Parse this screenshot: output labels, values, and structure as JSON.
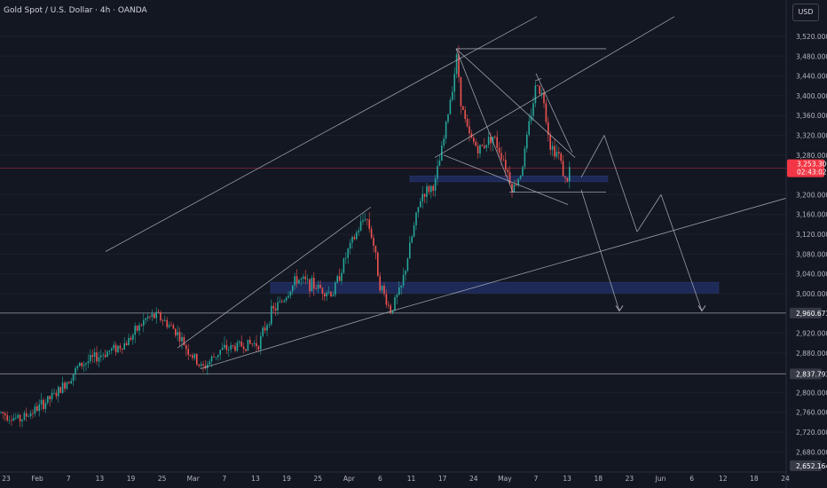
{
  "header": {
    "title": "Gold Spot / U.S. Dollar · 4h · OANDA",
    "currency_button": "USD"
  },
  "colors": {
    "background": "#131722",
    "up_candle": "#26a69a",
    "down_candle": "#ef5350",
    "zone": "#1e2a5a",
    "drawing_line": "#b2b5be",
    "current_price_tag": "#f23645"
  },
  "chart_data": {
    "type": "candlestick",
    "symbol": "Gold Spot / U.S. Dollar",
    "interval": "4h",
    "broker": "OANDA",
    "y_ticks": [
      "3,520.000",
      "3,480.000",
      "3,440.000",
      "3,400.000",
      "3,360.000",
      "3,320.000",
      "3,280.000",
      "3,200.000",
      "3,160.000",
      "3,120.000",
      "3,080.000",
      "3,040.000",
      "3,000.000",
      "2,920.000",
      "2,880.000",
      "2,800.000",
      "2,760.000",
      "2,720.000",
      "2,680.000"
    ],
    "x_ticks": [
      "23",
      "Feb",
      "7",
      "13",
      "19",
      "25",
      "Mar",
      "7",
      "13",
      "19",
      "25",
      "Apr",
      "6",
      "11",
      "17",
      "24",
      "May",
      "7",
      "13",
      "18",
      "23",
      "Jun",
      "6",
      "12",
      "18",
      "24"
    ],
    "price_tags": [
      {
        "label": "3,253.300",
        "sub": "02:43:02",
        "value": 3253.3,
        "style": "current"
      },
      {
        "label": "2,960.673",
        "value": 2960.673,
        "style": "level"
      },
      {
        "label": "2,837.793",
        "value": 2837.793,
        "style": "level"
      },
      {
        "label": "2,652.164",
        "value": 2652.164,
        "style": "level"
      }
    ],
    "ylim": [
      2640,
      3550
    ],
    "path": [
      [
        0,
        2760
      ],
      [
        22,
        2745
      ],
      [
        42,
        2768
      ],
      [
        65,
        2800
      ],
      [
        90,
        2855
      ],
      [
        118,
        2880
      ],
      [
        142,
        2900
      ],
      [
        165,
        2950
      ],
      [
        178,
        2955
      ],
      [
        198,
        2925
      ],
      [
        212,
        2885
      ],
      [
        228,
        2848
      ],
      [
        248,
        2885
      ],
      [
        270,
        2895
      ],
      [
        292,
        2900
      ],
      [
        305,
        2960
      ],
      [
        318,
        2985
      ],
      [
        335,
        3030
      ],
      [
        355,
        3015
      ],
      [
        375,
        3000
      ],
      [
        392,
        3085
      ],
      [
        412,
        3160
      ],
      [
        420,
        3110
      ],
      [
        428,
        3020
      ],
      [
        440,
        2965
      ],
      [
        452,
        3010
      ],
      [
        466,
        3130
      ],
      [
        475,
        3200
      ],
      [
        490,
        3220
      ],
      [
        500,
        3310
      ],
      [
        515,
        3480
      ],
      [
        520,
        3380
      ],
      [
        528,
        3320
      ],
      [
        540,
        3290
      ],
      [
        555,
        3320
      ],
      [
        568,
        3270
      ],
      [
        578,
        3210
      ],
      [
        588,
        3250
      ],
      [
        598,
        3360
      ],
      [
        605,
        3430
      ],
      [
        613,
        3390
      ],
      [
        620,
        3300
      ],
      [
        630,
        3280
      ],
      [
        638,
        3220
      ],
      [
        642,
        3253
      ]
    ],
    "zones": [
      {
        "x1": 305,
        "x2": 810,
        "top": 3023,
        "bottom": 3001
      },
      {
        "x1": 462,
        "x2": 685,
        "top": 3238,
        "bottom": 3226
      }
    ],
    "horizontal_levels": [
      3253.3,
      2960.673,
      2837.793
    ],
    "drawings": [
      {
        "from": [
          119,
          3085
        ],
        "to": [
          605,
          3560
        ]
      },
      {
        "from": [
          490,
          3275
        ],
        "to": [
          760,
          3560
        ]
      },
      {
        "from": [
          200,
          2890
        ],
        "to": [
          418,
          3175
        ]
      },
      {
        "from": [
          226,
          2848
        ],
        "to": [
          442,
          2965
        ]
      },
      {
        "from": [
          442,
          2965
        ],
        "to": [
          890,
          3195
        ]
      },
      {
        "from": [
          514,
          3495
        ],
        "to": [
          683,
          3495
        ]
      },
      {
        "from": [
          574,
          3205
        ],
        "to": [
          683,
          3205
        ]
      },
      {
        "from": [
          514,
          3495
        ],
        "to": [
          578,
          3205
        ]
      },
      {
        "from": [
          514,
          3495
        ],
        "to": [
          648,
          3275
        ]
      },
      {
        "from": [
          500,
          3280
        ],
        "to": [
          640,
          3180
        ]
      },
      {
        "from": [
          604,
          3445
        ],
        "to": [
          645,
          3285
        ]
      },
      {
        "from": [
          603,
          3430
        ],
        "to": [
          610,
          3435
        ]
      },
      {
        "from": [
          655,
          3235
        ],
        "to": [
          681,
          3320
        ]
      },
      {
        "from": [
          681,
          3320
        ],
        "to": [
          718,
          3125
        ]
      },
      {
        "from": [
          718,
          3125
        ],
        "to": [
          745,
          3200
        ]
      },
      {
        "from": [
          745,
          3200
        ],
        "to": [
          791,
          2965
        ]
      },
      {
        "from": [
          655,
          3210
        ],
        "to": [
          698,
          2965
        ]
      }
    ],
    "arrow_heads": [
      [
        698,
        2965
      ],
      [
        791,
        2965
      ]
    ]
  }
}
